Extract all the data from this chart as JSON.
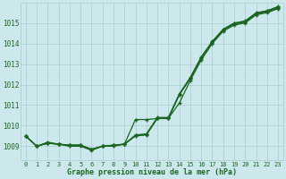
{
  "title": "Graphe pression niveau de la mer (hPa)",
  "background_color": "#cce8ec",
  "grid_color": "#aaccd0",
  "line_color": "#1a6620",
  "text_color": "#1a6620",
  "xlim": [
    -0.5,
    23.5
  ],
  "ylim": [
    1008.3,
    1016.0
  ],
  "yticks": [
    1009,
    1010,
    1011,
    1012,
    1013,
    1014,
    1015
  ],
  "xticks": [
    0,
    1,
    2,
    3,
    4,
    5,
    6,
    7,
    8,
    9,
    10,
    11,
    12,
    13,
    14,
    15,
    16,
    17,
    18,
    19,
    20,
    21,
    22,
    23
  ],
  "series_main1": [
    1009.5,
    1009.0,
    1009.15,
    1009.1,
    1009.05,
    1009.05,
    1008.85,
    1009.0,
    1009.05,
    1009.1,
    1009.5,
    1009.55,
    1010.35,
    1010.35,
    1011.5,
    1012.3,
    1013.3,
    1014.05,
    1014.65,
    1014.95,
    1015.05,
    1015.45,
    1015.55,
    1015.75
  ],
  "series_main2": [
    1009.5,
    1009.0,
    1009.15,
    1009.1,
    1009.05,
    1009.05,
    1008.85,
    1009.0,
    1009.05,
    1009.1,
    1009.55,
    1009.6,
    1010.4,
    1010.4,
    1011.55,
    1012.35,
    1013.35,
    1014.1,
    1014.7,
    1015.0,
    1015.1,
    1015.5,
    1015.6,
    1015.8
  ],
  "series_main3": [
    1009.5,
    1009.0,
    1009.15,
    1009.1,
    1009.05,
    1009.05,
    1008.85,
    1009.0,
    1009.05,
    1009.1,
    1009.52,
    1009.58,
    1010.38,
    1010.38,
    1011.52,
    1012.32,
    1013.32,
    1014.08,
    1014.68,
    1014.98,
    1015.08,
    1015.48,
    1015.58,
    1015.78
  ],
  "series_outlier": [
    1009.5,
    1009.0,
    1009.2,
    1009.1,
    1009.0,
    1009.0,
    1008.8,
    1009.0,
    1009.0,
    1009.1,
    1010.3,
    1010.3,
    1010.35,
    1010.35,
    1011.1,
    1012.2,
    1013.2,
    1014.0,
    1014.6,
    1014.9,
    1015.0,
    1015.4,
    1015.5,
    1015.7
  ]
}
